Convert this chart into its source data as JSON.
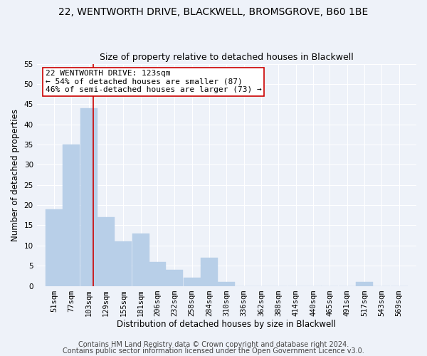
{
  "title": "22, WENTWORTH DRIVE, BLACKWELL, BROMSGROVE, B60 1BE",
  "subtitle": "Size of property relative to detached houses in Blackwell",
  "xlabel": "Distribution of detached houses by size in Blackwell",
  "ylabel": "Number of detached properties",
  "bar_color": "#b8cfe8",
  "bar_edgecolor": "#b8cfe8",
  "vline_x": 123,
  "vline_color": "#cc0000",
  "annotation_text": "22 WENTWORTH DRIVE: 123sqm\n← 54% of detached houses are smaller (87)\n46% of semi-detached houses are larger (73) →",
  "annotation_box_color": "#ffffff",
  "annotation_box_edgecolor": "#cc0000",
  "categories": [
    "51sqm",
    "77sqm",
    "103sqm",
    "129sqm",
    "155sqm",
    "181sqm",
    "206sqm",
    "232sqm",
    "258sqm",
    "284sqm",
    "310sqm",
    "336sqm",
    "362sqm",
    "388sqm",
    "414sqm",
    "440sqm",
    "465sqm",
    "491sqm",
    "517sqm",
    "543sqm",
    "569sqm"
  ],
  "values": [
    19,
    35,
    44,
    17,
    11,
    13,
    6,
    4,
    2,
    7,
    1,
    0,
    0,
    0,
    0,
    0,
    0,
    0,
    1,
    0,
    0
  ],
  "bin_edges": [
    51,
    77,
    103,
    129,
    155,
    181,
    206,
    232,
    258,
    284,
    310,
    336,
    362,
    388,
    414,
    440,
    465,
    491,
    517,
    543,
    569
  ],
  "bin_width": 26,
  "ylim": [
    0,
    55
  ],
  "yticks": [
    0,
    5,
    10,
    15,
    20,
    25,
    30,
    35,
    40,
    45,
    50,
    55
  ],
  "footer1": "Contains HM Land Registry data © Crown copyright and database right 2024.",
  "footer2": "Contains public sector information licensed under the Open Government Licence v3.0.",
  "bg_color": "#eef2f9",
  "grid_color": "#ffffff",
  "title_fontsize": 10,
  "subtitle_fontsize": 9,
  "label_fontsize": 8.5,
  "tick_fontsize": 7.5,
  "footer_fontsize": 7,
  "annotation_fontsize": 8
}
